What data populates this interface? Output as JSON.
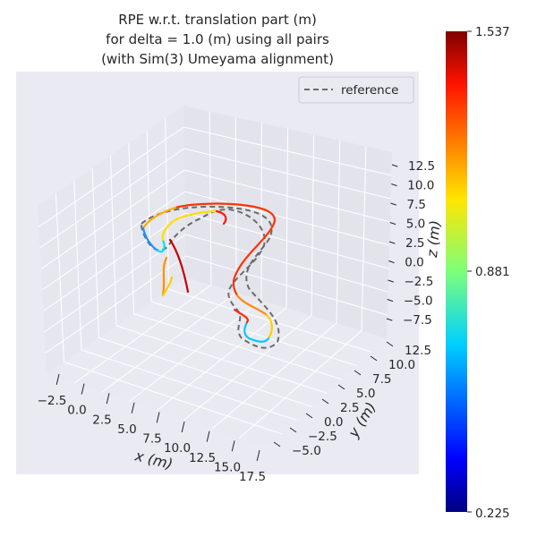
{
  "chart_data": {
    "type": "line",
    "title": [
      "RPE w.r.t. translation part (m)",
      "for delta = 1.0 (m) using all pairs",
      "(with Sim(3) Umeyama alignment)"
    ],
    "xlabel": "x (m)",
    "ylabel": "y (m)",
    "zlabel": "z (m)",
    "x_ticks": [
      "−2.5",
      "0.0",
      "2.5",
      "5.0",
      "7.5",
      "10.0",
      "12.5",
      "15.0",
      "17.5"
    ],
    "y_ticks": [
      "−5.0",
      "−2.5",
      "0.0",
      "2.5",
      "5.0",
      "7.5",
      "10.0",
      "12.5"
    ],
    "z_ticks": [
      "12.5",
      "10.0",
      "7.5",
      "5.0",
      "2.5",
      "0.0",
      "−2.5",
      "−5.0",
      "−7.5"
    ],
    "legend": {
      "entries": [
        "reference"
      ],
      "location": "upper right"
    },
    "colorbar": {
      "min": "0.225",
      "mid": "0.881",
      "max": "1.537",
      "colormap": "jet"
    },
    "grid": true,
    "series": [
      {
        "name": "reference",
        "style": "dashed",
        "color": "#6b6b6b"
      },
      {
        "style": "solid",
        "colored_by": "rpe"
      }
    ]
  }
}
